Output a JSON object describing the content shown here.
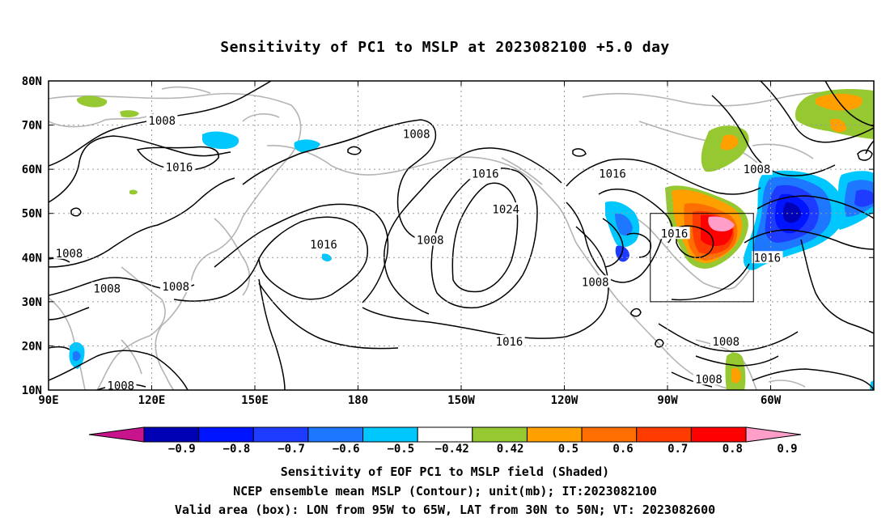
{
  "title": "Sensitivity of PC1 to MSLP at 2023082100 +5.0 day",
  "lat_labels": [
    "80N",
    "70N",
    "60N",
    "50N",
    "40N",
    "30N",
    "20N",
    "10N"
  ],
  "lon_labels": [
    "90E",
    "120E",
    "150E",
    "180",
    "150W",
    "120W",
    "90W",
    "60W"
  ],
  "contour_labels": [
    {
      "text": "1008",
      "lon": 123,
      "lat": 71
    },
    {
      "text": "1016",
      "lon": 128,
      "lat": 60.5
    },
    {
      "text": "1008",
      "lon": 197,
      "lat": 68
    },
    {
      "text": "1016",
      "lon": 217,
      "lat": 59
    },
    {
      "text": "1024",
      "lon": 223,
      "lat": 51
    },
    {
      "text": "1016",
      "lon": 170,
      "lat": 43
    },
    {
      "text": "1008",
      "lon": 201,
      "lat": 44
    },
    {
      "text": "1016",
      "lon": 254,
      "lat": 59
    },
    {
      "text": "1008",
      "lon": 296,
      "lat": 60
    },
    {
      "text": "1016",
      "lon": 272,
      "lat": 45.5
    },
    {
      "text": "1016",
      "lon": 299,
      "lat": 40
    },
    {
      "text": "1008",
      "lon": 96,
      "lat": 41
    },
    {
      "text": "1008",
      "lon": 107,
      "lat": 33
    },
    {
      "text": "1008",
      "lon": 127,
      "lat": 33.5
    },
    {
      "text": "1008",
      "lon": 249,
      "lat": 34.5
    },
    {
      "text": "1016",
      "lon": 224,
      "lat": 21
    },
    {
      "text": "1008",
      "lon": 287,
      "lat": 21
    },
    {
      "text": "1008",
      "lon": 282,
      "lat": 12.5
    },
    {
      "text": "1008",
      "lon": 111,
      "lat": 11
    }
  ],
  "valid_box": {
    "lon_min": 265,
    "lon_max": 295,
    "lat_min": 30,
    "lat_max": 50
  },
  "colorbar": {
    "labels": [
      "-0.9",
      "-0.8",
      "-0.7",
      "-0.6",
      "-0.5",
      "-0.42",
      "0.42",
      "0.5",
      "0.6",
      "0.7",
      "0.8",
      "0.9"
    ],
    "colors": [
      "#c8148c",
      "#0000b4",
      "#0014ff",
      "#1e3cff",
      "#1e78ff",
      "#00c8ff",
      "#ffffff",
      "#96c832",
      "#ffa000",
      "#ff6e00",
      "#ff3c00",
      "#ff0000",
      "#ff9ec8"
    ]
  },
  "caption": {
    "line1": "Sensitivity of EOF PC1 to MSLP field (Shaded)",
    "line2": "NCEP ensemble mean MSLP (Contour); unit(mb); IT:2023082100",
    "line3": "Valid area (box): LON from 95W to 65W, LAT from 30N to 50N; VT: 2023082600"
  }
}
